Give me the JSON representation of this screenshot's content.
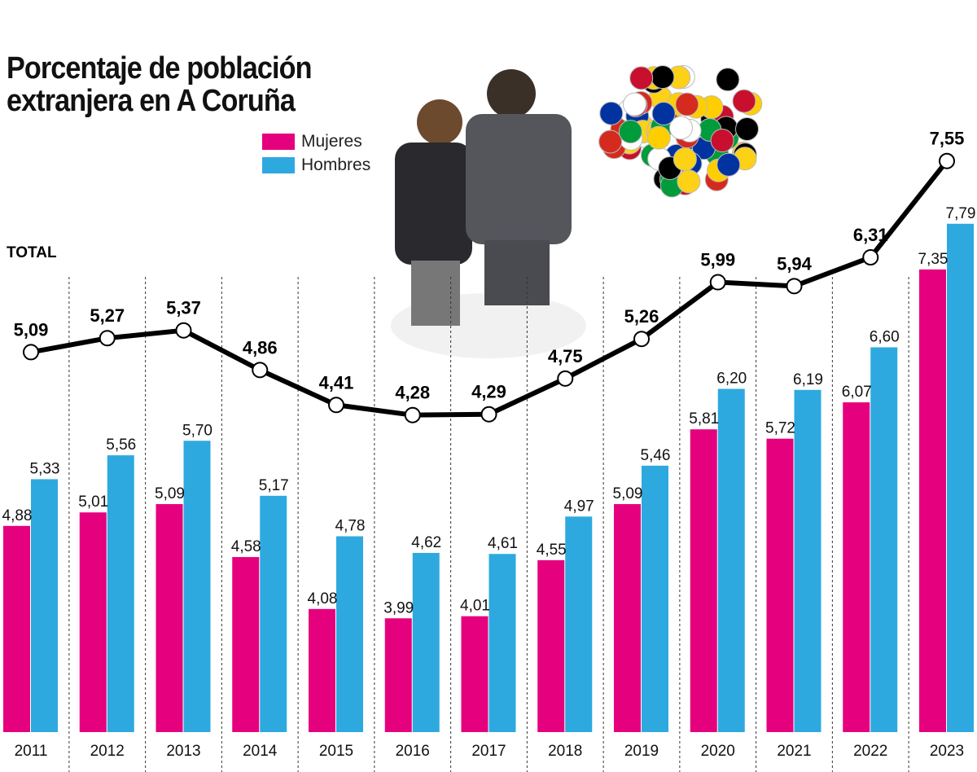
{
  "chart_data": {
    "type": "bar",
    "title": "Porcentaje de población extranjera en A Coruña",
    "categories": [
      "2011",
      "2012",
      "2013",
      "2014",
      "2015",
      "2016",
      "2017",
      "2018",
      "2019",
      "2020",
      "2021",
      "2022",
      "2023"
    ],
    "series": [
      {
        "name": "Mujeres",
        "type": "bar",
        "color": "#e5007e",
        "values": [
          4.88,
          5.01,
          5.09,
          4.58,
          4.08,
          3.99,
          4.01,
          4.55,
          5.09,
          5.81,
          5.72,
          6.07,
          7.35
        ],
        "labels": [
          "4,88",
          "5,01",
          "5,09",
          "4,58",
          "4,08",
          "3,99",
          "4,01",
          "4,55",
          "5,09",
          "5,81",
          "5,72",
          "6,07",
          "7,35"
        ]
      },
      {
        "name": "Hombres",
        "type": "bar",
        "color": "#2ea9df",
        "values": [
          5.33,
          5.56,
          5.7,
          5.17,
          4.78,
          4.62,
          4.61,
          4.97,
          5.46,
          6.2,
          6.19,
          6.6,
          7.79
        ],
        "labels": [
          "5,33",
          "5,56",
          "5,70",
          "5,17",
          "4,78",
          "4,62",
          "4,61",
          "4,97",
          "5,46",
          "6,20",
          "6,19",
          "6,60",
          "7,79"
        ]
      },
      {
        "name": "TOTAL",
        "type": "line",
        "color": "#000000",
        "values": [
          5.09,
          5.27,
          5.37,
          4.86,
          4.41,
          4.28,
          4.29,
          4.75,
          5.26,
          5.99,
          5.94,
          6.31,
          7.55
        ],
        "labels": [
          "5,09",
          "5,27",
          "5,37",
          "4,86",
          "4,41",
          "4,28",
          "4,29",
          "4,75",
          "5,26",
          "5,99",
          "5,94",
          "6,31",
          "7,55"
        ]
      }
    ],
    "legend": "top-center",
    "grid": false
  },
  "title_line1": "Porcentaje de población",
  "title_line2": "extranjera en A Coruña",
  "legend": {
    "mujeres": "Mujeres",
    "hombres": "Hombres",
    "total": "TOTAL"
  }
}
